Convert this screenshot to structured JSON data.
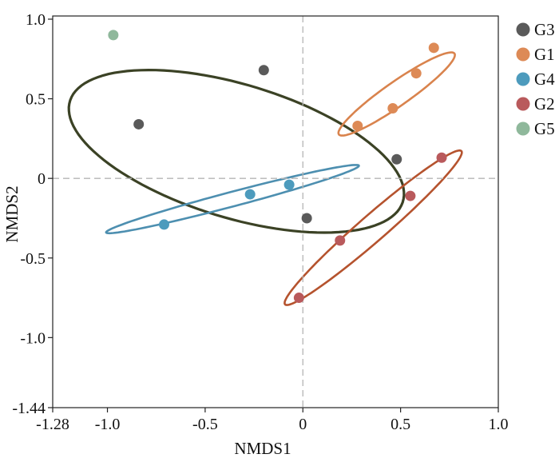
{
  "chart_data": {
    "type": "scatter",
    "title": "",
    "xlabel": "NMDS1",
    "ylabel": "NMDS2",
    "xlim": [
      -1.28,
      1.0
    ],
    "ylim": [
      -1.44,
      1.02
    ],
    "xticks": [
      -1.28,
      -1.0,
      -0.5,
      0,
      0.5,
      1.0
    ],
    "xtick_labels": [
      "-1.28",
      "-1.0",
      "-0.5",
      "0",
      "0.5",
      "1.0"
    ],
    "yticks": [
      1.0,
      0.5,
      0,
      -0.5,
      -1.0,
      -1.44
    ],
    "ytick_labels": [
      "1.0",
      "0.5",
      "0",
      "-0.5",
      "-1.0",
      "-1.44"
    ],
    "reference_lines": {
      "x": 0,
      "y": 0
    },
    "grid": false,
    "legend_position": "right",
    "series": [
      {
        "name": "G3",
        "color": "#5a5a5a",
        "points": [
          [
            -0.84,
            0.34
          ],
          [
            -0.2,
            0.68
          ],
          [
            0.02,
            -0.25
          ],
          [
            0.48,
            0.12
          ]
        ],
        "ellipse": {
          "cx": -0.34,
          "cy": 0.17,
          "rx": 0.91,
          "ry": 0.41,
          "angle": -22,
          "color": "#3b4225"
        }
      },
      {
        "name": "G1",
        "color": "#dd8a56",
        "points": [
          [
            0.28,
            0.33
          ],
          [
            0.46,
            0.44
          ],
          [
            0.58,
            0.66
          ],
          [
            0.67,
            0.82
          ]
        ],
        "ellipse": {
          "cx": 0.48,
          "cy": 0.53,
          "rx": 0.39,
          "ry": 0.07,
          "angle": 41,
          "color": "#d9834d"
        }
      },
      {
        "name": "G4",
        "color": "#4d9bbd",
        "points": [
          [
            -0.71,
            -0.29
          ],
          [
            -0.27,
            -0.1
          ],
          [
            -0.07,
            -0.04
          ]
        ],
        "ellipse": {
          "cx": -0.36,
          "cy": -0.13,
          "rx": 0.68,
          "ry": 0.045,
          "angle": 18,
          "color": "#4d8fb0"
        }
      },
      {
        "name": "G2",
        "color": "#b95a5c",
        "points": [
          [
            -0.02,
            -0.75
          ],
          [
            0.19,
            -0.39
          ],
          [
            0.55,
            -0.11
          ],
          [
            0.71,
            0.13
          ]
        ],
        "ellipse": {
          "cx": 0.36,
          "cy": -0.31,
          "rx": 0.66,
          "ry": 0.075,
          "angle": 47,
          "color": "#b5532e"
        }
      },
      {
        "name": "G5",
        "color": "#8fb89b",
        "points": [
          [
            -0.97,
            0.9
          ]
        ],
        "ellipse": null
      }
    ]
  }
}
